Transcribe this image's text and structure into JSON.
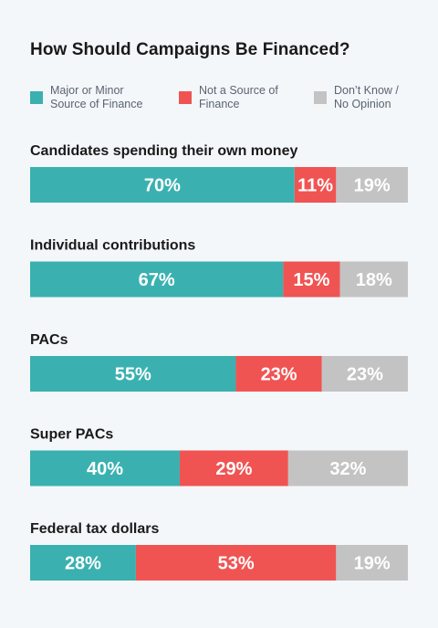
{
  "chart_data": {
    "type": "bar",
    "orientation": "horizontal-stacked-100",
    "title": "How Should Campaigns Be Financed?",
    "categories": [
      "Candidates spending their own money",
      "Individual contributions",
      "PACs",
      "Super PACs",
      "Federal tax dollars"
    ],
    "series": [
      {
        "name": "Major or Minor Source of Finance",
        "color": "#3ab1b0",
        "values": [
          70,
          67,
          55,
          40,
          28
        ]
      },
      {
        "name": "Not a Source of Finance",
        "color": "#ef5453",
        "values": [
          11,
          15,
          23,
          29,
          53
        ]
      },
      {
        "name": "Don’t Know / No Opinion",
        "color": "#c3c3c3",
        "values": [
          19,
          18,
          23,
          32,
          19
        ]
      }
    ],
    "value_suffix": "%",
    "legend_position": "top",
    "grid": false
  }
}
